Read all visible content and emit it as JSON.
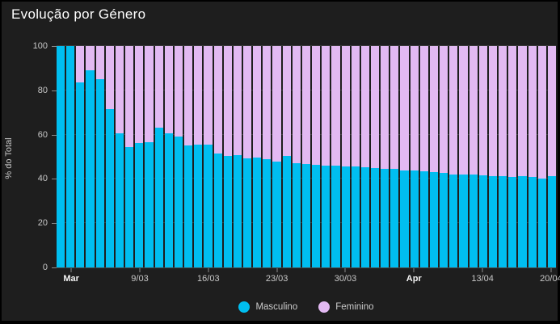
{
  "chart_data": {
    "type": "bar",
    "stacked": true,
    "percent_stacked": true,
    "title": "Evolução por Género",
    "ylabel": "% do Total",
    "ylim": [
      0,
      100
    ],
    "yticks": [
      0,
      20,
      40,
      60,
      80,
      100
    ],
    "grid": true,
    "legend_position": "bottom",
    "x": [
      "1/03",
      "2/03",
      "3/03",
      "4/03",
      "5/03",
      "6/03",
      "7/03",
      "8/03",
      "9/03",
      "10/03",
      "11/03",
      "12/03",
      "13/03",
      "14/03",
      "15/03",
      "16/03",
      "17/03",
      "18/03",
      "19/03",
      "20/03",
      "21/03",
      "22/03",
      "23/03",
      "24/03",
      "25/03",
      "26/03",
      "27/03",
      "28/03",
      "29/03",
      "30/03",
      "31/03",
      "1/04",
      "2/04",
      "3/04",
      "4/04",
      "5/04",
      "6/04",
      "7/04",
      "8/04",
      "9/04",
      "10/04",
      "11/04",
      "12/04",
      "13/04",
      "14/04",
      "15/04",
      "16/04",
      "17/04",
      "18/04",
      "19/04",
      "20/04"
    ],
    "xticks": [
      {
        "index": 1,
        "label": "Mar",
        "bold": true
      },
      {
        "index": 8,
        "label": "9/03",
        "bold": false
      },
      {
        "index": 15,
        "label": "16/03",
        "bold": false
      },
      {
        "index": 22,
        "label": "23/03",
        "bold": false
      },
      {
        "index": 29,
        "label": "30/03",
        "bold": false
      },
      {
        "index": 36,
        "label": "Apr",
        "bold": true
      },
      {
        "index": 43,
        "label": "13/04",
        "bold": false
      },
      {
        "index": 50,
        "label": "20/04",
        "bold": false
      }
    ],
    "series": [
      {
        "name": "Masculino",
        "color": "#00bef0",
        "values": [
          100,
          100,
          83.4,
          88.9,
          84.9,
          71.5,
          60.5,
          54.3,
          56.2,
          56.5,
          63.1,
          60.7,
          59.0,
          55.0,
          55.6,
          55.6,
          51.6,
          50.4,
          50.8,
          49.3,
          49.8,
          49.0,
          47.8,
          50.5,
          47.2,
          46.6,
          46.3,
          46.0,
          46.0,
          45.7,
          45.6,
          45.3,
          45.0,
          44.4,
          44.4,
          43.9,
          43.8,
          43.3,
          42.9,
          42.7,
          42.1,
          42.1,
          42.0,
          41.7,
          41.4,
          41.4,
          40.8,
          41.1,
          40.8,
          40.1,
          41.4
        ]
      },
      {
        "name": "Feminino",
        "color": "#e2b9f2",
        "values": [
          0,
          0,
          16.6,
          11.1,
          15.1,
          28.5,
          39.5,
          45.7,
          43.8,
          43.5,
          36.9,
          39.3,
          41.0,
          45.0,
          44.4,
          44.4,
          48.4,
          49.6,
          49.2,
          50.7,
          50.2,
          51.0,
          52.2,
          49.5,
          52.8,
          53.4,
          53.7,
          54.0,
          54.0,
          54.3,
          54.4,
          54.7,
          55.0,
          55.6,
          55.6,
          56.1,
          56.2,
          56.7,
          57.1,
          57.3,
          57.9,
          57.9,
          58.0,
          58.3,
          58.6,
          58.6,
          59.2,
          58.9,
          59.2,
          59.9,
          58.6
        ]
      }
    ]
  },
  "colors": {
    "page_background": "#000000",
    "panel_background": "#1e1e1e",
    "title_text": "#ffffff",
    "tick_text": "#c8c8c8",
    "bold_tick_text": "#f5f5f5",
    "gridline": "#3a3a3a",
    "masculino": "#00bef0",
    "feminino": "#e2b9f2"
  }
}
